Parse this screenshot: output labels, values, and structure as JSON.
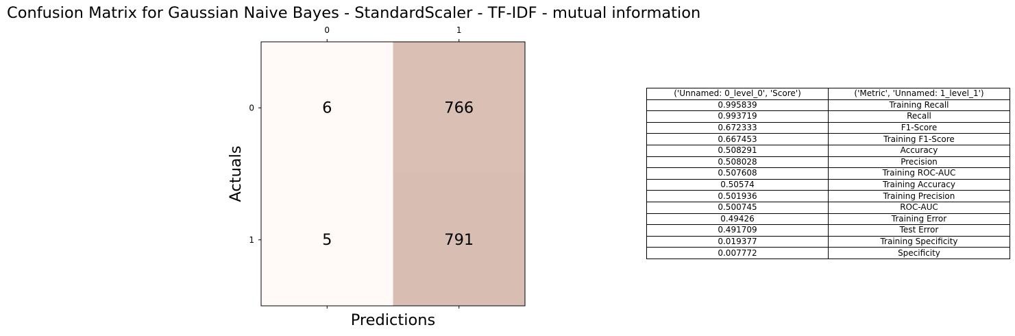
{
  "title": "Confusion Matrix for Gaussian Naive Bayes - StandardScaler - TF-IDF - mutual information",
  "chart_data": [
    {
      "type": "heatmap",
      "title": "Confusion Matrix for Gaussian Naive Bayes - StandardScaler - TF-IDF - mutual information",
      "xlabel": "Predictions",
      "ylabel": "Actuals",
      "x_categories": [
        "0",
        "1"
      ],
      "y_categories": [
        "0",
        "1"
      ],
      "x_ticks_position": "top",
      "values": [
        [
          6,
          766
        ],
        [
          5,
          791
        ]
      ],
      "colors": {
        "low": "#fffaf7",
        "high": "#d8bdb2"
      },
      "grid": false
    },
    {
      "type": "table",
      "columns": [
        "('Unnamed: 0_level_0', 'Score')",
        "('Metric', 'Unnamed: 1_level_1')"
      ],
      "rows": [
        [
          "0.995839",
          "Training Recall"
        ],
        [
          "0.993719",
          "Recall"
        ],
        [
          "0.672333",
          "F1-Score"
        ],
        [
          "0.667453",
          "Training F1-Score"
        ],
        [
          "0.508291",
          "Accuracy"
        ],
        [
          "0.508028",
          "Precision"
        ],
        [
          "0.507608",
          "Training ROC-AUC"
        ],
        [
          "0.50574",
          "Training Accuracy"
        ],
        [
          "0.501936",
          "Training Precision"
        ],
        [
          "0.500745",
          "ROC-AUC"
        ],
        [
          "0.49426",
          "Training Error"
        ],
        [
          "0.491709",
          "Test Error"
        ],
        [
          "0.019377",
          "Training Specificity"
        ],
        [
          "0.007772",
          "Specificity"
        ]
      ]
    }
  ]
}
